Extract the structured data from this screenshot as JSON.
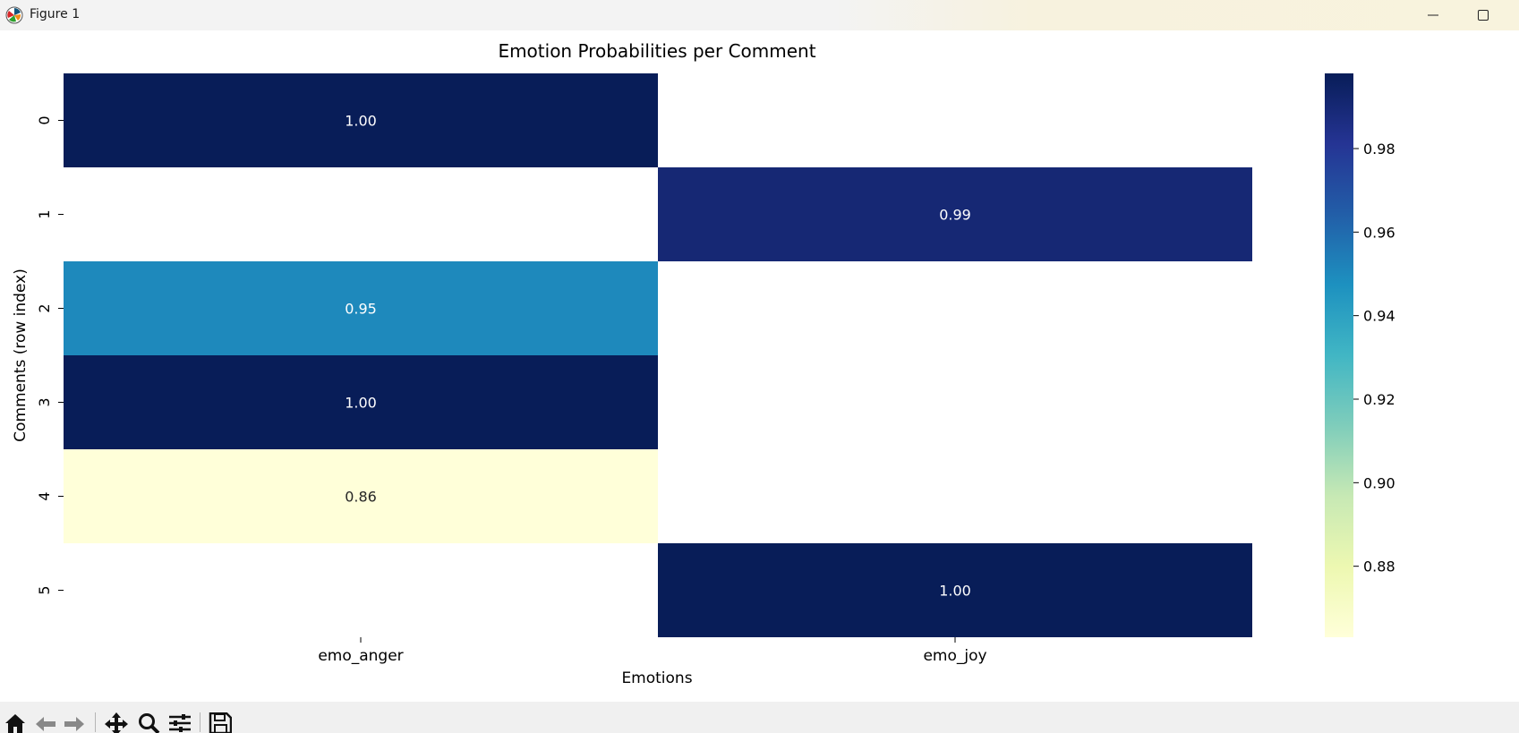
{
  "window": {
    "title": "Figure 1"
  },
  "chart_data": {
    "type": "heatmap",
    "title": "Emotion Probabilities per Comment",
    "xlabel": "Emotions",
    "ylabel": "Comments (row index)",
    "x_categories": [
      "emo_anger",
      "emo_joy"
    ],
    "y_categories": [
      "0",
      "1",
      "2",
      "3",
      "4",
      "5"
    ],
    "values": [
      [
        1.0,
        null
      ],
      [
        null,
        0.99
      ],
      [
        0.95,
        null
      ],
      [
        1.0,
        null
      ],
      [
        0.86,
        null
      ],
      [
        null,
        1.0
      ]
    ],
    "annotations": [
      [
        "1.00",
        ""
      ],
      [
        "",
        "0.99"
      ],
      [
        "0.95",
        ""
      ],
      [
        "1.00",
        ""
      ],
      [
        "0.86",
        ""
      ],
      [
        "",
        "1.00"
      ]
    ],
    "colormap": "YlGnBu",
    "colorbar": {
      "range": [
        0.863,
        0.998
      ],
      "ticks": [
        0.88,
        0.9,
        0.92,
        0.94,
        0.96,
        0.98
      ],
      "tick_labels": [
        "0.88",
        "0.90",
        "0.92",
        "0.94",
        "0.96",
        "0.98"
      ]
    }
  },
  "toolbar": {
    "icons": [
      "home-icon",
      "back-icon",
      "forward-icon",
      "pan-icon",
      "zoom-icon",
      "configure-icon",
      "save-icon"
    ]
  }
}
